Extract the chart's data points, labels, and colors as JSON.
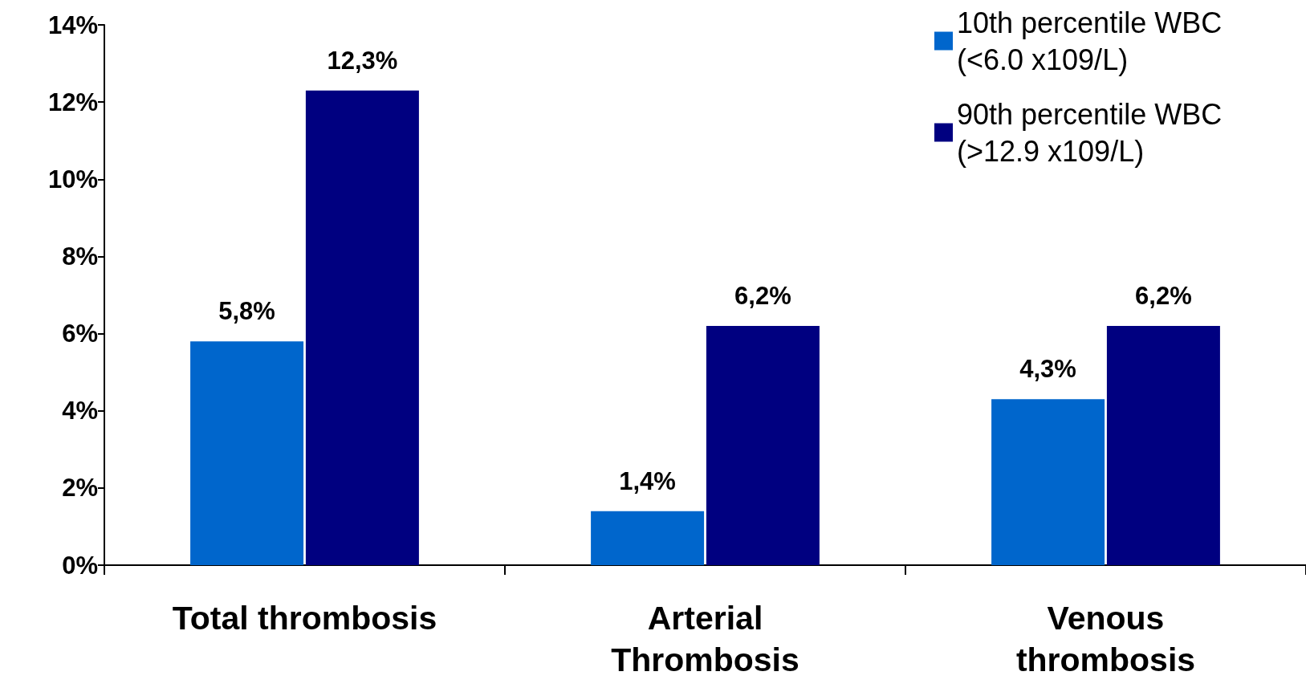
{
  "chart_data": {
    "type": "bar",
    "categories": [
      "Total thrombosis",
      "Arterial\nThrombosis",
      "Venous\nthrombosis"
    ],
    "series": [
      {
        "name": "10th percentile WBC (<6.0 x109/L)",
        "color": "#0066cc",
        "values": [
          5.8,
          1.4,
          4.3
        ],
        "value_labels": [
          "5,8%",
          "1,4%",
          "4,3%"
        ]
      },
      {
        "name": "90th percentile WBC (>12.9 x109/L)",
        "color": "#000080",
        "values": [
          12.3,
          6.2,
          6.2
        ],
        "value_labels": [
          "12,3%",
          "6,2%",
          "6,2%"
        ]
      }
    ],
    "ylim": [
      0,
      14
    ],
    "yticks": [
      {
        "value": 0,
        "label": "0%"
      },
      {
        "value": 2,
        "label": "2%"
      },
      {
        "value": 4,
        "label": "4%"
      },
      {
        "value": 6,
        "label": "6%"
      },
      {
        "value": 8,
        "label": "8%"
      },
      {
        "value": 10,
        "label": "10%"
      },
      {
        "value": 12,
        "label": "12%"
      },
      {
        "value": 14,
        "label": "14%"
      }
    ],
    "grid": false,
    "legend": "top right"
  }
}
